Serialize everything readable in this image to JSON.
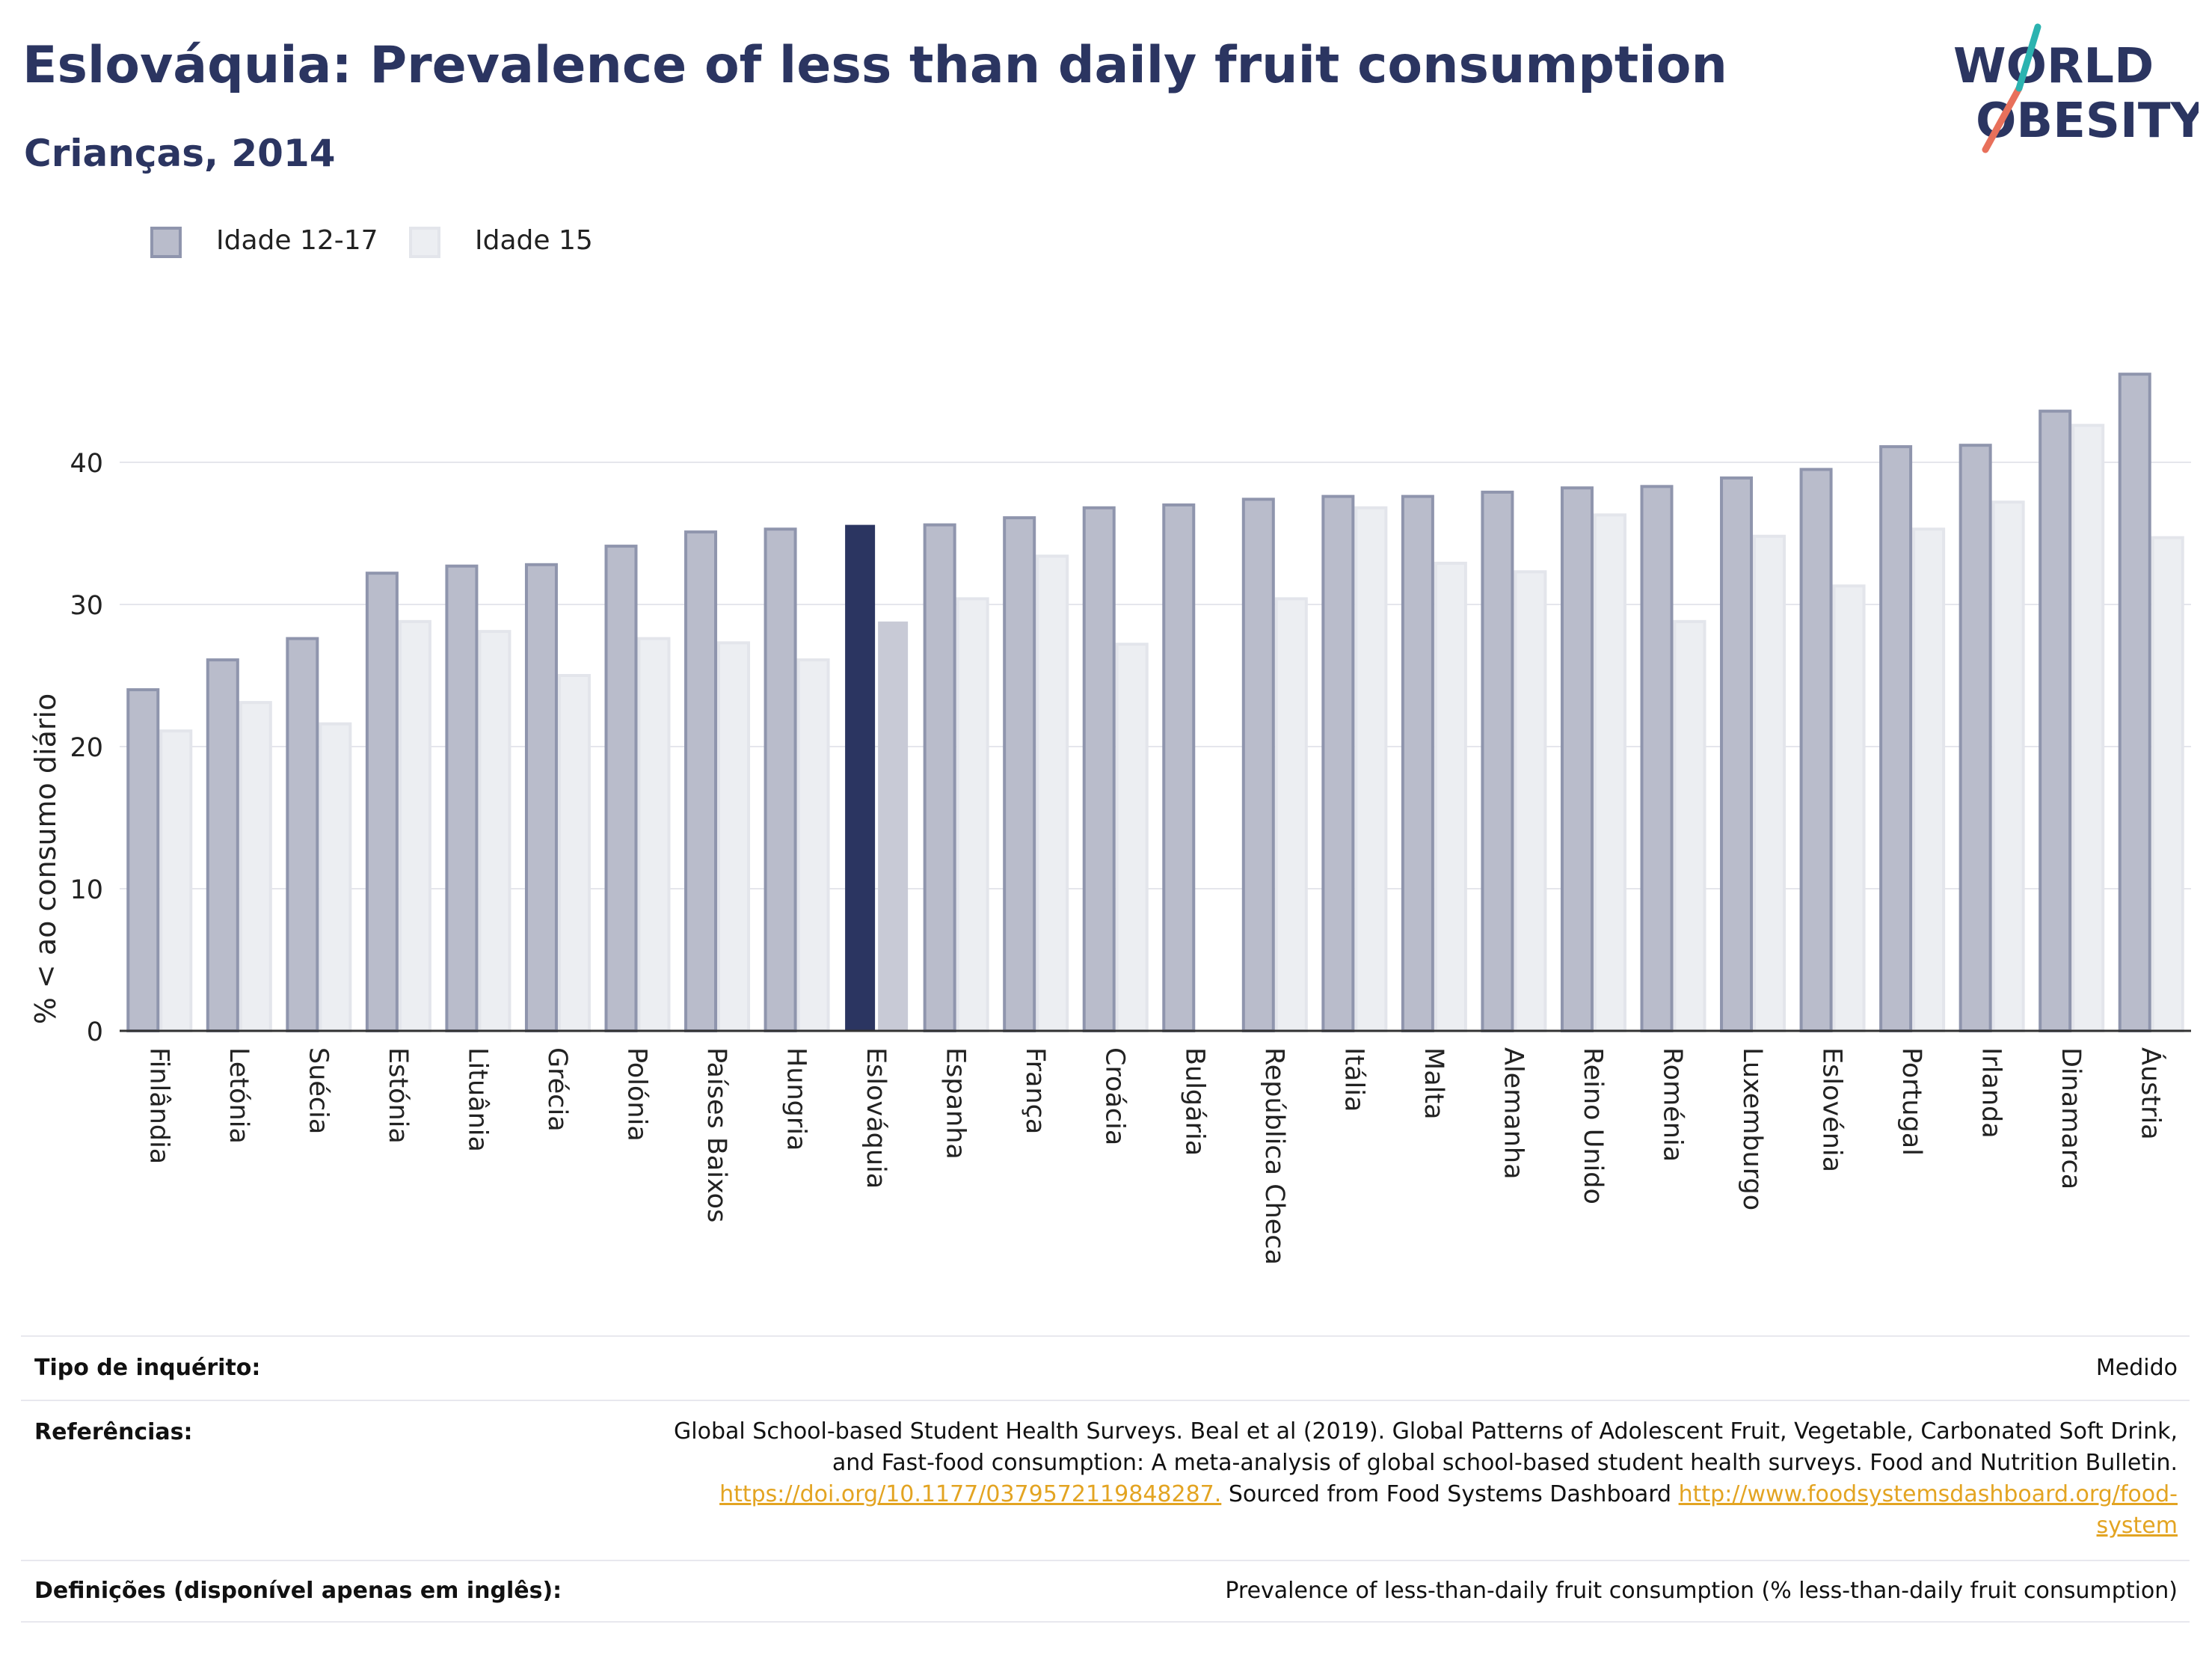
{
  "header": {
    "title": "Eslováquia: Prevalence of less than daily fruit consumption",
    "subtitle": "Crianças, 2014"
  },
  "logo": {
    "line1": "WORLD",
    "line2": "OBESITY",
    "accent_colors": [
      "#e8705b",
      "#2cb3b0"
    ]
  },
  "colors": {
    "series1_fill": "#b9bccb",
    "series1_stroke": "#8f95ad",
    "series2_fill": "#eceef2",
    "series2_stroke": "#e3e5eb",
    "highlight1": "#2b3561",
    "highlight2": "#c8cad6",
    "grid": "#e5e6ec"
  },
  "chart_data": {
    "type": "bar",
    "ylabel": "% < ao consumo diário",
    "ylim": [
      0,
      50
    ],
    "yticks": [
      0,
      10,
      20,
      30,
      40
    ],
    "grid": true,
    "legend_placement": "top-left",
    "highlight_category": "Eslováquia",
    "categories": [
      "Finlândia",
      "Letónia",
      "Suécia",
      "Estónia",
      "Lituânia",
      "Grécia",
      "Polónia",
      "Países Baixos",
      "Hungria",
      "Eslováquia",
      "Espanha",
      "França",
      "Croácia",
      "Bulgária",
      "República Checa",
      "Itália",
      "Malta",
      "Alemanha",
      "Reino Unido",
      "Roménia",
      "Luxemburgo",
      "Eslovénia",
      "Portugal",
      "Irlanda",
      "Dinamarca",
      "Áustria"
    ],
    "series": [
      {
        "name": "Idade 12-17",
        "values": [
          24.0,
          26.1,
          27.6,
          32.2,
          32.7,
          32.8,
          34.1,
          35.1,
          35.3,
          35.6,
          35.6,
          36.1,
          36.8,
          37.0,
          37.4,
          37.6,
          37.6,
          37.9,
          38.2,
          38.3,
          38.9,
          39.5,
          41.1,
          41.2,
          43.6,
          46.2
        ]
      },
      {
        "name": "Idade 15",
        "values": [
          21.1,
          23.1,
          21.6,
          28.8,
          28.1,
          25.0,
          27.6,
          27.3,
          26.1,
          28.8,
          30.4,
          33.4,
          27.2,
          null,
          30.4,
          36.8,
          32.9,
          32.3,
          36.3,
          28.8,
          34.8,
          31.3,
          35.3,
          37.2,
          42.6,
          34.7
        ]
      }
    ]
  },
  "footer": {
    "survey_label": "Tipo de inquérito:",
    "survey_value": "Medido",
    "refs_label": "Referências:",
    "refs_line1": "Global School-based Student Health Surveys. Beal et al (2019). Global Patterns of Adolescent Fruit, Vegetable, Carbonated Soft Drink,",
    "refs_line2": "and Fast-food consumption: A meta-analysis of global school-based student health surveys. Food and Nutrition Bulletin.",
    "refs_link1": "https://doi.org/10.1177/0379572119848287.",
    "refs_mid": " Sourced from Food Systems Dashboard ",
    "refs_link2a": "http://www.foodsystemsdashboard.org/food-",
    "refs_link2b": "system",
    "defs_label": "Definições (disponível apenas em inglês):",
    "defs_value": "Prevalence of less-than-daily fruit consumption (% less-than-daily fruit consumption)"
  }
}
